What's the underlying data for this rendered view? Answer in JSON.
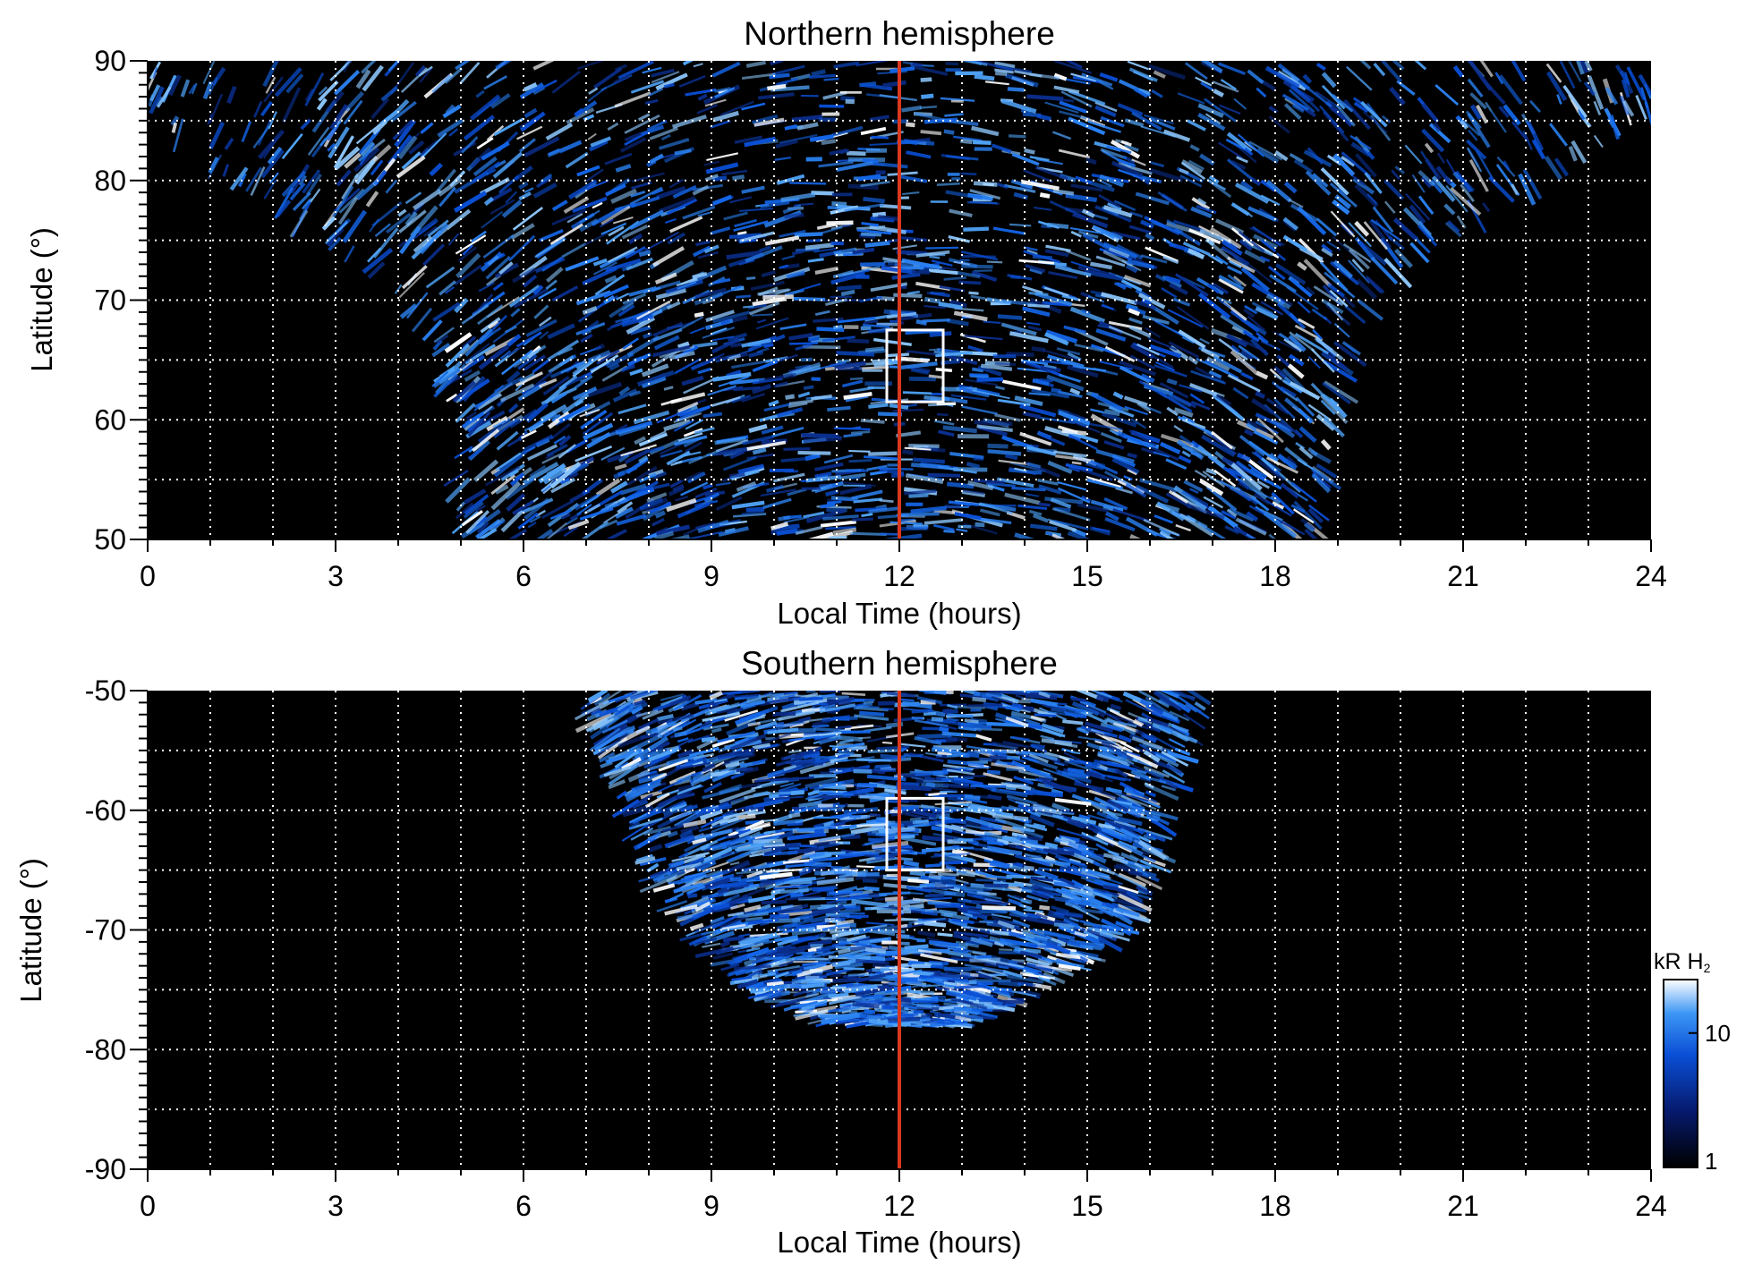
{
  "chart_data": [
    {
      "type": "heatmap",
      "title": "Northern hemisphere",
      "xlabel": "Local Time (hours)",
      "ylabel": "Latitude (°)",
      "xlim": [
        0,
        24
      ],
      "ylim": [
        50,
        90
      ],
      "x_ticks": [
        "0",
        "3",
        "6",
        "9",
        "12",
        "15",
        "18",
        "21",
        "24"
      ],
      "x_tick_values": [
        0,
        3,
        6,
        9,
        12,
        15,
        18,
        21,
        24
      ],
      "y_ticks": [
        "50",
        "60",
        "70",
        "80",
        "90"
      ],
      "y_tick_values": [
        50,
        60,
        70,
        80,
        90
      ],
      "grid": true,
      "grid_x_step_hours": 1,
      "grid_y_step_deg": 5,
      "reference_line_local_time": 12,
      "reference_line_color": "#d9381e",
      "highlight_box": {
        "lt_range": [
          11.8,
          12.7
        ],
        "lat_range": [
          61.5,
          67.5
        ]
      },
      "coverage": {
        "description_rows": [
          {
            "lat": 50,
            "lt_min": 5.1,
            "lt_max": 18.7
          },
          {
            "lat": 55,
            "lt_min": 4.9,
            "lt_max": 18.9
          },
          {
            "lat": 60,
            "lt_min": 4.8,
            "lt_max": 19.0
          },
          {
            "lat": 65,
            "lt_min": 4.6,
            "lt_max": 19.2
          },
          {
            "lat": 70,
            "lt_min": 4.0,
            "lt_max": 19.6
          },
          {
            "lat": 75,
            "lt_min": 2.8,
            "lt_max": 20.6
          },
          {
            "lat": 80,
            "lt_min": 1.3,
            "lt_max": 22.3
          },
          {
            "lat": 85,
            "lt_min": 0.0,
            "lt_max": 24.0
          },
          {
            "lat": 90,
            "lt_min": 0.0,
            "lt_max": 24.0
          }
        ]
      }
    },
    {
      "type": "heatmap",
      "title": "Southern hemisphere",
      "xlabel": "Local Time (hours)",
      "ylabel": "Latitude (°)",
      "xlim": [
        0,
        24
      ],
      "ylim": [
        -90,
        -50
      ],
      "x_ticks": [
        "0",
        "3",
        "6",
        "9",
        "12",
        "15",
        "18",
        "21",
        "24"
      ],
      "x_tick_values": [
        0,
        3,
        6,
        9,
        12,
        15,
        18,
        21,
        24
      ],
      "y_ticks": [
        "-50",
        "-60",
        "-70",
        "-80",
        "-90"
      ],
      "y_tick_values": [
        -50,
        -60,
        -70,
        -80,
        -90
      ],
      "grid": true,
      "grid_x_step_hours": 1,
      "grid_y_step_deg": 5,
      "reference_line_local_time": 12,
      "reference_line_color": "#d9381e",
      "highlight_box": {
        "lt_range": [
          11.8,
          12.7
        ],
        "lat_range": [
          -65,
          -59
        ]
      },
      "coverage": {
        "description_rows": [
          {
            "lat": -50,
            "lt_min": 7.0,
            "lt_max": 16.9
          },
          {
            "lat": -55,
            "lt_min": 7.2,
            "lt_max": 16.6
          },
          {
            "lat": -60,
            "lt_min": 7.6,
            "lt_max": 16.3
          },
          {
            "lat": -65,
            "lt_min": 8.0,
            "lt_max": 16.1
          },
          {
            "lat": -70,
            "lt_min": 8.6,
            "lt_max": 15.6
          },
          {
            "lat": -75,
            "lt_min": 9.6,
            "lt_max": 14.3
          },
          {
            "lat": -78,
            "lt_min": 11.0,
            "lt_max": 13.0
          }
        ]
      }
    }
  ],
  "colorbar": {
    "label_main": "kR H",
    "label_sub": "2",
    "ticks": [
      "10",
      "1"
    ],
    "tick_values": [
      10,
      1
    ],
    "scale": "log",
    "range": [
      1,
      25
    ],
    "colors": [
      "#000000",
      "#061a6e",
      "#0a4fd6",
      "#3d96f5",
      "#ffffff"
    ]
  },
  "colors": {
    "plot_background": "#000000",
    "grid": "#ffffff",
    "reference_line": "#d9381e",
    "emission_low": "#0a3fb8",
    "emission_mid": "#1f7af0",
    "emission_high": "#ffffff"
  }
}
